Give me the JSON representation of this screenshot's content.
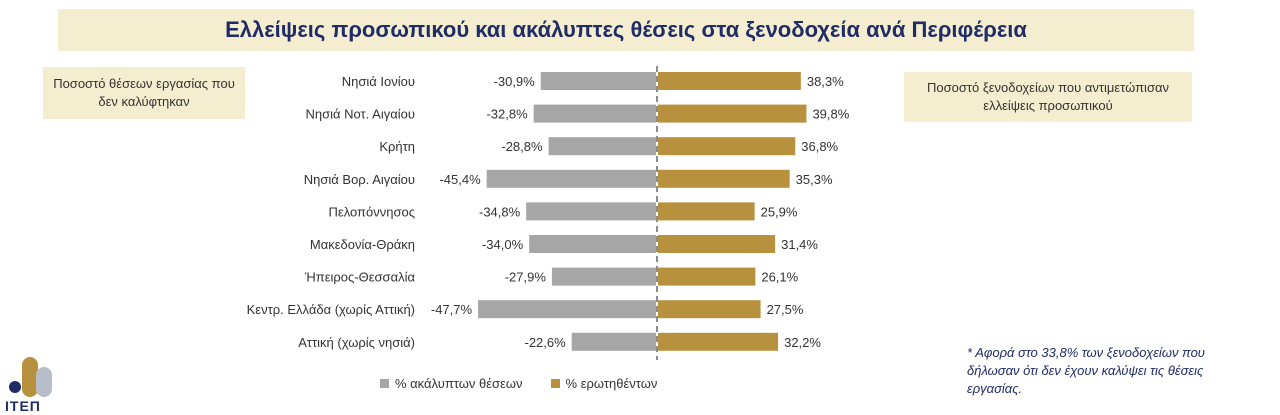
{
  "title": "Ελλείψεις προσωπικού και ακάλυπτες θέσεις στα ξενοδοχεία ανά Περιφέρεια",
  "left_box": "Ποσοστό θέσεων εργασίας που δεν καλύφτηκαν",
  "right_box": "Ποσοστό ξενοδοχείων που αντιμετώπισαν ελλείψεις προσωπικού",
  "note": "* Αφορά στο 33,8% των ξενοδοχείων που δήλωσαν ότι δεν έχουν καλύψει τις θέσεις εργασίας.",
  "logo_text": "ΙΤΕΠ",
  "colors": {
    "gray": "#a6a6a6",
    "gold": "#b8913e",
    "title_bg": "#f5edcf",
    "navy": "#1f2c66",
    "logo_light": "#b9bdc9"
  },
  "chart_data": {
    "type": "bar",
    "orientation": "horizontal",
    "categories": [
      "Νησιά Ιονίου",
      "Νησιά Νοτ. Αιγαίου",
      "Κρήτη",
      "Νησιά Βορ. Αιγαίου",
      "Πελοπόννησος",
      "Μακεδονία-Θράκη",
      "Ήπειρος-Θεσσαλία",
      "Κεντρ. Ελλάδα (χωρίς Αττική)",
      "Αττική (χωρίς νησιά)"
    ],
    "series": [
      {
        "name": "% ακάλυπτων θέσεων",
        "values": [
          -30.9,
          -32.8,
          -28.8,
          -45.4,
          -34.8,
          -34.0,
          -27.9,
          -47.7,
          -22.6
        ],
        "labels": [
          "-30,9%",
          "-32,8%",
          "-28,8%",
          "-45,4%",
          "-34,8%",
          "-34,0%",
          "-27,9%",
          "-47,7%",
          "-22,6%"
        ],
        "color": "#a6a6a6"
      },
      {
        "name": "% ερωτηθέντων",
        "values": [
          38.3,
          39.8,
          36.8,
          35.3,
          25.9,
          31.4,
          26.1,
          27.5,
          32.2
        ],
        "labels": [
          "38,3%",
          "39,8%",
          "36,8%",
          "35,3%",
          "25,9%",
          "31,4%",
          "26,1%",
          "27,5%",
          "32,2%"
        ],
        "color": "#b8913e"
      }
    ],
    "legend": "bottom"
  }
}
